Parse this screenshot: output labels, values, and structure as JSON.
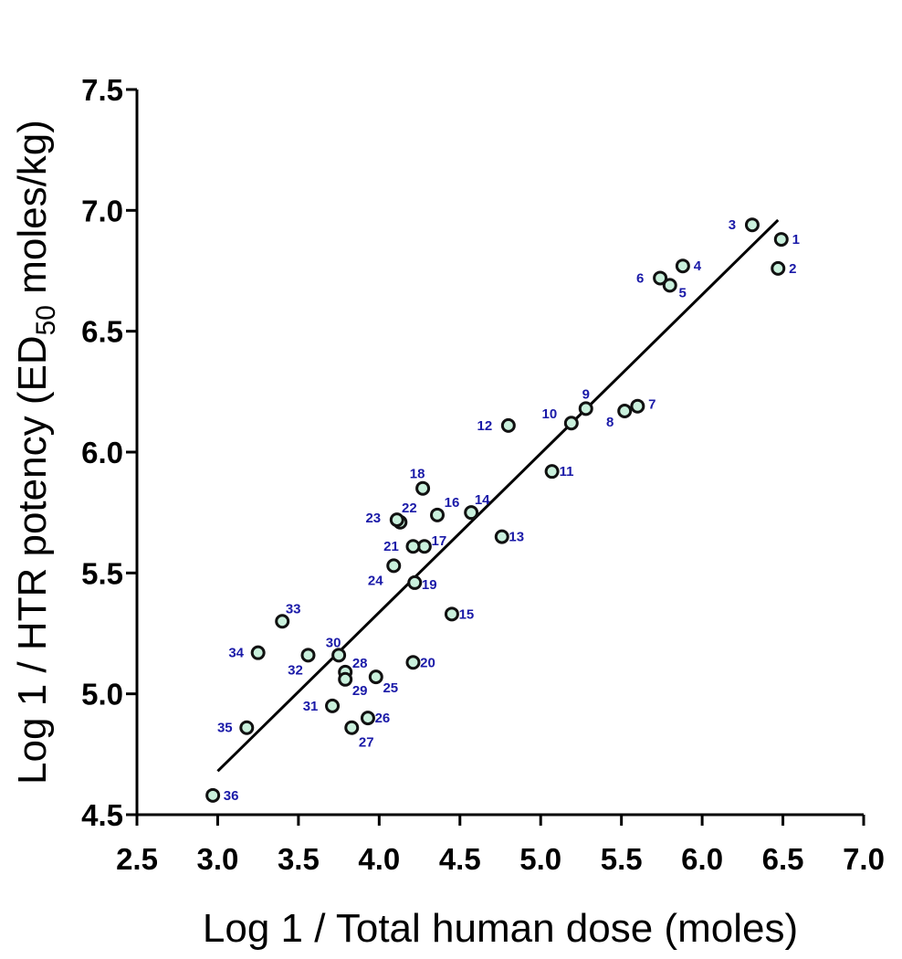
{
  "chart_data": {
    "type": "scatter",
    "xlabel": "Log  1 / Total human dose (moles)",
    "ylabel_main": "Log  1 / HTR potency (ED",
    "ylabel_sub": "50",
    "ylabel_tail": " moles/kg)",
    "xlim": [
      2.5,
      7.0
    ],
    "ylim": [
      4.5,
      7.5
    ],
    "xticks": [
      "2.5",
      "3.0",
      "3.5",
      "4.0",
      "4.5",
      "5.0",
      "5.5",
      "6.0",
      "6.5",
      "7.0"
    ],
    "yticks": [
      "4.5",
      "5.0",
      "5.5",
      "6.0",
      "6.5",
      "7.0",
      "7.5"
    ],
    "grid": false,
    "regression_line": {
      "x": [
        3.0,
        6.47
      ],
      "y": [
        4.68,
        6.96
      ]
    },
    "colors": {
      "marker_fill": "#c9f0dc",
      "marker_edge": "#111111",
      "label": "#1a1aa8",
      "line": "#000000"
    },
    "points": [
      {
        "label": "1",
        "x": 6.49,
        "y": 6.88,
        "ldx": 16,
        "ldy": 0
      },
      {
        "label": "2",
        "x": 6.47,
        "y": 6.76,
        "ldx": 16,
        "ldy": 0
      },
      {
        "label": "3",
        "x": 6.31,
        "y": 6.94,
        "ldx": -22,
        "ldy": 0
      },
      {
        "label": "4",
        "x": 5.88,
        "y": 6.77,
        "ldx": 16,
        "ldy": 0
      },
      {
        "label": "5",
        "x": 5.8,
        "y": 6.69,
        "ldx": 14,
        "ldy": 8
      },
      {
        "label": "6",
        "x": 5.74,
        "y": 6.72,
        "ldx": -22,
        "ldy": 0
      },
      {
        "label": "7",
        "x": 5.6,
        "y": 6.19,
        "ldx": 16,
        "ldy": -2
      },
      {
        "label": "8",
        "x": 5.52,
        "y": 6.17,
        "ldx": -16,
        "ldy": 12
      },
      {
        "label": "9",
        "x": 5.28,
        "y": 6.18,
        "ldx": 0,
        "ldy": -16
      },
      {
        "label": "10",
        "x": 5.19,
        "y": 6.12,
        "ldx": -24,
        "ldy": -10
      },
      {
        "label": "11",
        "x": 5.07,
        "y": 5.92,
        "ldx": 16,
        "ldy": 0
      },
      {
        "label": "12",
        "x": 4.8,
        "y": 6.11,
        "ldx": -26,
        "ldy": 0
      },
      {
        "label": "13",
        "x": 4.76,
        "y": 5.65,
        "ldx": 16,
        "ldy": 0
      },
      {
        "label": "14",
        "x": 4.57,
        "y": 5.75,
        "ldx": 12,
        "ldy": -14
      },
      {
        "label": "15",
        "x": 4.45,
        "y": 5.33,
        "ldx": 16,
        "ldy": 0
      },
      {
        "label": "16",
        "x": 4.36,
        "y": 5.74,
        "ldx": 16,
        "ldy": -14
      },
      {
        "label": "17",
        "x": 4.28,
        "y": 5.61,
        "ldx": 16,
        "ldy": -6
      },
      {
        "label": "18",
        "x": 4.27,
        "y": 5.85,
        "ldx": -6,
        "ldy": -16
      },
      {
        "label": "19",
        "x": 4.22,
        "y": 5.46,
        "ldx": 16,
        "ldy": 2
      },
      {
        "label": "20",
        "x": 4.21,
        "y": 5.13,
        "ldx": 16,
        "ldy": 0
      },
      {
        "label": "21",
        "x": 4.21,
        "y": 5.61,
        "ldx": -24,
        "ldy": 0
      },
      {
        "label": "22",
        "x": 4.13,
        "y": 5.71,
        "ldx": 10,
        "ldy": -16
      },
      {
        "label": "23",
        "x": 4.11,
        "y": 5.72,
        "ldx": -26,
        "ldy": -2
      },
      {
        "label": "24",
        "x": 4.09,
        "y": 5.53,
        "ldx": -20,
        "ldy": 16
      },
      {
        "label": "25",
        "x": 3.98,
        "y": 5.07,
        "ldx": 16,
        "ldy": 12
      },
      {
        "label": "26",
        "x": 3.93,
        "y": 4.9,
        "ldx": 16,
        "ldy": 0
      },
      {
        "label": "27",
        "x": 3.83,
        "y": 4.86,
        "ldx": 16,
        "ldy": 16
      },
      {
        "label": "28",
        "x": 3.79,
        "y": 5.09,
        "ldx": 16,
        "ldy": -10
      },
      {
        "label": "29",
        "x": 3.79,
        "y": 5.06,
        "ldx": 16,
        "ldy": 12
      },
      {
        "label": "30",
        "x": 3.75,
        "y": 5.16,
        "ldx": -6,
        "ldy": -14
      },
      {
        "label": "31",
        "x": 3.71,
        "y": 4.95,
        "ldx": -24,
        "ldy": 0
      },
      {
        "label": "32",
        "x": 3.56,
        "y": 5.16,
        "ldx": -14,
        "ldy": 16
      },
      {
        "label": "33",
        "x": 3.4,
        "y": 5.3,
        "ldx": 12,
        "ldy": -14
      },
      {
        "label": "34",
        "x": 3.25,
        "y": 5.17,
        "ldx": -24,
        "ldy": 0
      },
      {
        "label": "35",
        "x": 3.18,
        "y": 4.86,
        "ldx": -24,
        "ldy": 0
      },
      {
        "label": "36",
        "x": 2.97,
        "y": 4.58,
        "ldx": 20,
        "ldy": 0
      }
    ]
  }
}
